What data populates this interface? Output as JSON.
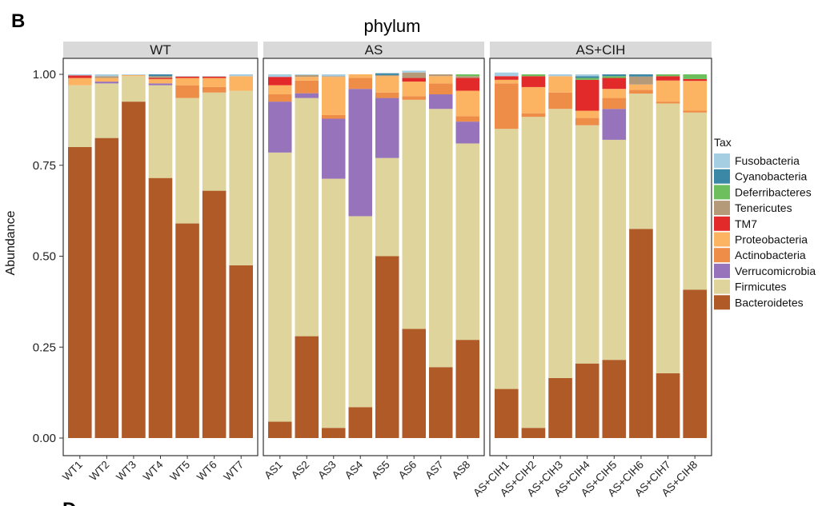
{
  "panel_label": "B",
  "footer_letter": "D",
  "chart_data": {
    "type": "bar",
    "stacked": true,
    "title": "phylum",
    "ylabel": "Abundance",
    "xlabel": "",
    "ylim": [
      0,
      1.05
    ],
    "yticks": [
      "0.00",
      "0.25",
      "0.50",
      "0.75",
      "1.00"
    ],
    "ytick_values": [
      0,
      0.25,
      0.5,
      0.75,
      1.0
    ],
    "grid": false,
    "legend_title": "Tax",
    "legend_position": "right",
    "colors": {
      "Fusobacteria": "#a6cee3",
      "Cyanobacteria": "#3a88a6",
      "Deferribacteres": "#6dbf5d",
      "Tenericutes": "#b59a7a",
      "TM7": "#e32a2a",
      "Proteobacteria": "#fdb462",
      "Actinobacteria": "#ee8d47",
      "Verrucomicrobia": "#9673ba",
      "Firmicutes": "#dfd49b",
      "Bacteroidetes": "#b05a28"
    },
    "series_order_bottom_to_top": [
      "Bacteroidetes",
      "Firmicutes",
      "Verrucomicrobia",
      "Actinobacteria",
      "Proteobacteria",
      "TM7",
      "Tenericutes",
      "Deferribacteres",
      "Cyanobacteria",
      "Fusobacteria"
    ],
    "legend_entries": [
      "Fusobacteria",
      "Cyanobacteria",
      "Deferribacteres",
      "Tenericutes",
      "TM7",
      "Proteobacteria",
      "Actinobacteria",
      "Verrucomicrobia",
      "Firmicutes",
      "Bacteroidetes"
    ],
    "facets": [
      {
        "name": "WT",
        "categories": [
          "WT1",
          "WT2",
          "WT3",
          "WT4",
          "WT5",
          "WT6",
          "WT7"
        ],
        "series": [
          {
            "name": "Bacteroidetes",
            "values": [
              0.8,
              0.825,
              0.925,
              0.715,
              0.59,
              0.68,
              0.475
            ]
          },
          {
            "name": "Firmicutes",
            "values": [
              0.17,
              0.15,
              0.07,
              0.255,
              0.345,
              0.27,
              0.48
            ]
          },
          {
            "name": "Verrucomicrobia",
            "values": [
              0.0,
              0.005,
              0.0,
              0.005,
              0.0,
              0.0,
              0.0
            ]
          },
          {
            "name": "Actinobacteria",
            "values": [
              0.0,
              0.0,
              0.0,
              0.0,
              0.035,
              0.015,
              0.0
            ]
          },
          {
            "name": "Proteobacteria",
            "values": [
              0.02,
              0.01,
              0.003,
              0.012,
              0.02,
              0.025,
              0.04
            ]
          },
          {
            "name": "TM7",
            "values": [
              0.007,
              0.0,
              0.0,
              0.003,
              0.004,
              0.004,
              0.0
            ]
          },
          {
            "name": "Tenericutes",
            "values": [
              0.0,
              0.005,
              0.0,
              0.005,
              0.0,
              0.0,
              0.0
            ]
          },
          {
            "name": "Deferribacteres",
            "values": [
              0.0,
              0.0,
              0.0,
              0.0,
              0.0,
              0.0,
              0.0
            ]
          },
          {
            "name": "Cyanobacteria",
            "values": [
              0.0,
              0.0,
              0.0,
              0.005,
              0.0,
              0.0,
              0.0
            ]
          },
          {
            "name": "Fusobacteria",
            "values": [
              0.003,
              0.005,
              0.002,
              0.0,
              0.001,
              0.001,
              0.005
            ]
          }
        ]
      },
      {
        "name": "AS",
        "categories": [
          "AS1",
          "AS2",
          "AS3",
          "AS4",
          "AS5",
          "AS6",
          "AS7",
          "AS8"
        ],
        "series": [
          {
            "name": "Bacteroidetes",
            "values": [
              0.045,
              0.28,
              0.028,
              0.085,
              0.5,
              0.3,
              0.195,
              0.27
            ]
          },
          {
            "name": "Firmicutes",
            "values": [
              0.74,
              0.655,
              0.685,
              0.525,
              0.27,
              0.63,
              0.71,
              0.54
            ]
          },
          {
            "name": "Verrucomicrobia",
            "values": [
              0.14,
              0.013,
              0.165,
              0.35,
              0.165,
              0.0,
              0.04,
              0.06
            ]
          },
          {
            "name": "Actinobacteria",
            "values": [
              0.02,
              0.035,
              0.01,
              0.03,
              0.015,
              0.01,
              0.03,
              0.015
            ]
          },
          {
            "name": "Proteobacteria",
            "values": [
              0.025,
              0.01,
              0.105,
              0.01,
              0.045,
              0.04,
              0.02,
              0.07
            ]
          },
          {
            "name": "TM7",
            "values": [
              0.023,
              0.0,
              0.0,
              0.0,
              0.0,
              0.01,
              0.0,
              0.035
            ]
          },
          {
            "name": "Tenericutes",
            "values": [
              0.0,
              0.005,
              0.002,
              0.0,
              0.003,
              0.015,
              0.005,
              0.005
            ]
          },
          {
            "name": "Deferribacteres",
            "values": [
              0.0,
              0.0,
              0.0,
              0.0,
              0.0,
              0.0,
              0.0,
              0.005
            ]
          },
          {
            "name": "Cyanobacteria",
            "values": [
              0.0,
              0.0,
              0.0,
              0.0,
              0.005,
              0.0,
              0.0,
              0.0
            ]
          },
          {
            "name": "Fusobacteria",
            "values": [
              0.007,
              0.002,
              0.005,
              0.0,
              0.0,
              0.005,
              0.0,
              0.0
            ]
          }
        ]
      },
      {
        "name": "AS+CIH",
        "categories": [
          "AS+CIH1",
          "AS+CIH2",
          "AS+CIH3",
          "AS+CIH4",
          "AS+CIH5",
          "AS+CIH6",
          "AS+CIH7",
          "AS+CIH8"
        ],
        "series": [
          {
            "name": "Bacteroidetes",
            "values": [
              0.135,
              0.028,
              0.165,
              0.205,
              0.215,
              0.575,
              0.178,
              0.408
            ]
          },
          {
            "name": "Firmicutes",
            "values": [
              0.715,
              0.855,
              0.74,
              0.655,
              0.605,
              0.372,
              0.742,
              0.487
            ]
          },
          {
            "name": "Verrucomicrobia",
            "values": [
              0.0,
              0.0,
              0.0,
              0.0,
              0.085,
              0.0,
              0.0,
              0.0
            ]
          },
          {
            "name": "Actinobacteria",
            "values": [
              0.125,
              0.01,
              0.045,
              0.02,
              0.03,
              0.01,
              0.005,
              0.005
            ]
          },
          {
            "name": "Proteobacteria",
            "values": [
              0.01,
              0.072,
              0.045,
              0.02,
              0.025,
              0.015,
              0.058,
              0.082
            ]
          },
          {
            "name": "TM7",
            "values": [
              0.01,
              0.03,
              0.0,
              0.085,
              0.03,
              0.0,
              0.012,
              0.005
            ]
          },
          {
            "name": "Tenericutes",
            "values": [
              0.0,
              0.0,
              0.0,
              0.0,
              0.0,
              0.022,
              0.0,
              0.0
            ]
          },
          {
            "name": "Deferribacteres",
            "values": [
              0.0,
              0.005,
              0.0,
              0.005,
              0.005,
              0.0,
              0.005,
              0.013
            ]
          },
          {
            "name": "Cyanobacteria",
            "values": [
              0.0,
              0.0,
              0.0,
              0.005,
              0.005,
              0.006,
              0.0,
              0.0
            ]
          },
          {
            "name": "Fusobacteria",
            "values": [
              0.01,
              0.0,
              0.005,
              0.005,
              0.0,
              0.0,
              0.0,
              0.0
            ]
          }
        ]
      }
    ]
  }
}
